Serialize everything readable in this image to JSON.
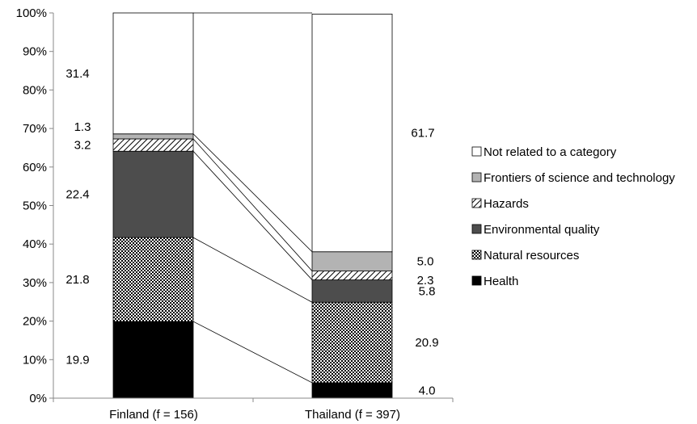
{
  "chart_data": {
    "type": "bar",
    "stacked": true,
    "percent": true,
    "categories": [
      "Finland (f = 156)",
      "Thailand (f = 397)"
    ],
    "ylim": [
      0,
      100
    ],
    "yticks": [
      "0%",
      "10%",
      "20%",
      "30%",
      "40%",
      "50%",
      "60%",
      "70%",
      "80%",
      "90%",
      "100%"
    ],
    "legend_position": "right",
    "series": [
      {
        "name": "Health",
        "pattern": "solid-black",
        "values": [
          19.9,
          4.0
        ],
        "labels": [
          "19.9",
          "4.0"
        ]
      },
      {
        "name": "Natural resources",
        "pattern": "checker",
        "values": [
          21.8,
          20.9
        ],
        "labels": [
          "21.8",
          "20.9"
        ]
      },
      {
        "name": "Environmental quality",
        "pattern": "dark-gray",
        "values": [
          22.4,
          5.8
        ],
        "labels": [
          "22.4",
          "5.8"
        ]
      },
      {
        "name": "Hazards",
        "pattern": "diagonal-hatch",
        "values": [
          3.2,
          2.3
        ],
        "labels": [
          "3.2",
          "2.3"
        ]
      },
      {
        "name": "Frontiers of science and technology",
        "pattern": "light-gray",
        "values": [
          1.3,
          5.0
        ],
        "labels": [
          "1.3",
          "5.0"
        ]
      },
      {
        "name": "Not related to a category",
        "pattern": "white",
        "values": [
          31.4,
          61.7
        ],
        "labels": [
          "31.4",
          "61.7"
        ]
      }
    ],
    "legend_order": [
      "Not related to a category",
      "Frontiers of science and technology",
      "Hazards",
      "Environmental quality",
      "Natural resources",
      "Health"
    ]
  }
}
